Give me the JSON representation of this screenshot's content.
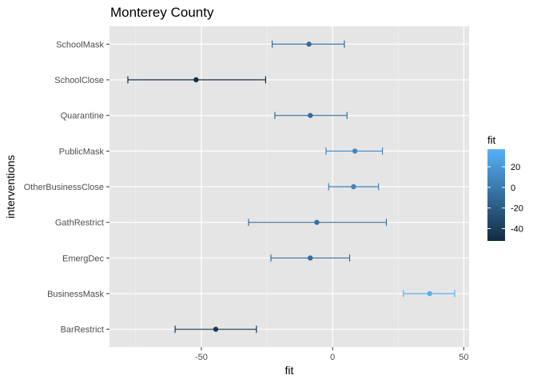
{
  "chart_data": {
    "type": "scatter",
    "title": "Monterey County",
    "xlabel": "fit",
    "ylabel": "interventions",
    "xlim": [
      -85,
      52
    ],
    "x_ticks": [
      -50,
      0,
      50
    ],
    "x_tick_labels": [
      "-50",
      "0",
      "50"
    ],
    "categories": [
      "SchoolMask",
      "SchoolClose",
      "Quarantine",
      "PublicMask",
      "OtherBusinessClose",
      "GathRestrict",
      "EmergDec",
      "BusinessMask",
      "BarRestrict"
    ],
    "series": [
      {
        "points": [
          {
            "category": "SchoolMask",
            "fit": -9,
            "lower": -23,
            "upper": 4.5
          },
          {
            "category": "SchoolClose",
            "fit": -52,
            "lower": -78,
            "upper": -25.5
          },
          {
            "category": "Quarantine",
            "fit": -8.5,
            "lower": -22,
            "upper": 5.5
          },
          {
            "category": "PublicMask",
            "fit": 8.5,
            "lower": -2.5,
            "upper": 19
          },
          {
            "category": "OtherBusinessClose",
            "fit": 8,
            "lower": -1.5,
            "upper": 17.5
          },
          {
            "category": "GathRestrict",
            "fit": -6,
            "lower": -32,
            "upper": 20.5
          },
          {
            "category": "EmergDec",
            "fit": -8.5,
            "lower": -23.5,
            "upper": 6.5
          },
          {
            "category": "BusinessMask",
            "fit": 37,
            "lower": 27,
            "upper": 46.5
          },
          {
            "category": "BarRestrict",
            "fit": -44.5,
            "lower": -60,
            "upper": -29
          }
        ]
      }
    ],
    "grid": true,
    "legend": {
      "title": "fit",
      "position": "right",
      "type": "colorbar",
      "ticks": [
        20,
        0,
        -20,
        -40
      ],
      "tick_labels": [
        "20",
        "0",
        "-20",
        "-40"
      ],
      "range": [
        -52,
        37
      ],
      "low_color": "#132b43",
      "high_color": "#56b1f7"
    },
    "colors": {
      "panel_bg": "#e5e5e5",
      "grid_major": "#ffffff",
      "grid_minor": "#f2f2f2"
    }
  }
}
